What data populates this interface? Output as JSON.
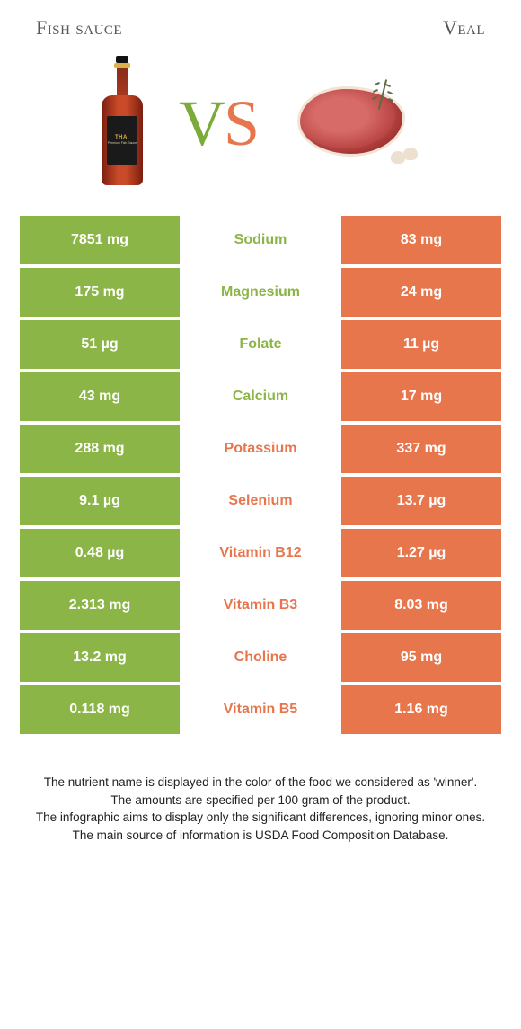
{
  "colors": {
    "left": "#8cb548",
    "right": "#e7764d",
    "row_bg": "#ffffff",
    "text_footer": "#222222"
  },
  "titles": {
    "left": "Fish sauce",
    "right": "Veal"
  },
  "vs": {
    "v": "V",
    "s": "S"
  },
  "rows": [
    {
      "left": "7851 mg",
      "name": "Sodium",
      "right": "83 mg",
      "winner": "left"
    },
    {
      "left": "175 mg",
      "name": "Magnesium",
      "right": "24 mg",
      "winner": "left"
    },
    {
      "left": "51 µg",
      "name": "Folate",
      "right": "11 µg",
      "winner": "left"
    },
    {
      "left": "43 mg",
      "name": "Calcium",
      "right": "17 mg",
      "winner": "left"
    },
    {
      "left": "288 mg",
      "name": "Potassium",
      "right": "337 mg",
      "winner": "right"
    },
    {
      "left": "9.1 µg",
      "name": "Selenium",
      "right": "13.7 µg",
      "winner": "right"
    },
    {
      "left": "0.48 µg",
      "name": "Vitamin B12",
      "right": "1.27 µg",
      "winner": "right"
    },
    {
      "left": "2.313 mg",
      "name": "Vitamin B3",
      "right": "8.03 mg",
      "winner": "right"
    },
    {
      "left": "13.2 mg",
      "name": "Choline",
      "right": "95 mg",
      "winner": "right"
    },
    {
      "left": "0.118 mg",
      "name": "Vitamin B5",
      "right": "1.16 mg",
      "winner": "right"
    }
  ],
  "footer": {
    "l1": "The nutrient name is displayed in the color of the food we considered as 'winner'.",
    "l2": "The amounts are specified per 100 gram of the product.",
    "l3": "The infographic aims to display only the significant differences, ignoring minor ones.",
    "l4": "The main source of information is USDA Food Composition Database."
  },
  "bottle_label": {
    "brand": "THAI",
    "sub": "Premium Fish Sauce"
  }
}
